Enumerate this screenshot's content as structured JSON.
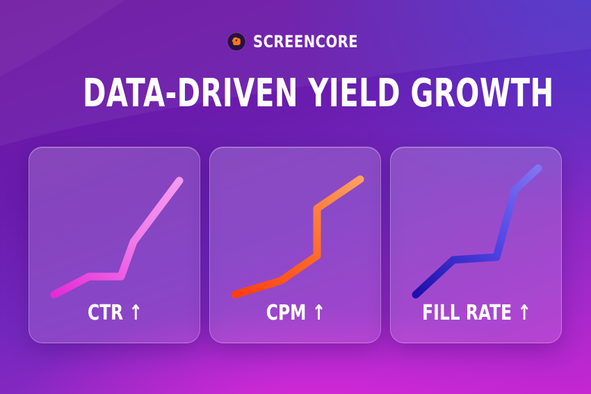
{
  "brand": {
    "name": "SCREENCORE",
    "logo_icon": "screencore-logo-icon",
    "logo_colors": {
      "base": "#2a1046",
      "blob": "#ff7a1a"
    }
  },
  "headline": "DATA-DRIVEN YIELD GROWTH",
  "cards": [
    {
      "label": "CTR ↑",
      "metric": "CTR",
      "trend": "up",
      "line_colors": [
        "#e52ad8",
        "#f07ae8",
        "#f59af0"
      ]
    },
    {
      "label": "CPM ↑",
      "metric": "CPM",
      "trend": "up",
      "line_colors": [
        "#ff3f10",
        "#ff6a2a",
        "#ffa060"
      ]
    },
    {
      "label": "FILL RATE ↑",
      "metric": "FILL RATE",
      "trend": "up",
      "line_colors": [
        "#1d0fa8",
        "#5346e6",
        "#7f76f2"
      ]
    }
  ]
}
